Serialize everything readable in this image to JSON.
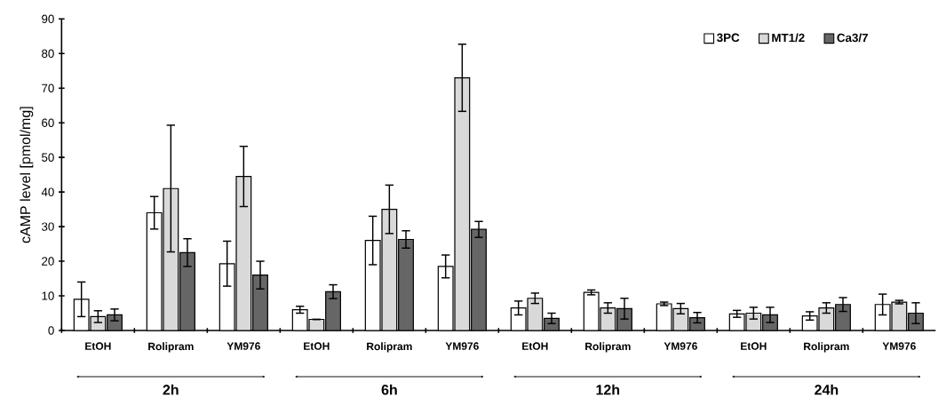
{
  "chart_data": {
    "type": "bar",
    "ylabel": "cAMP level [pmol/mg]",
    "categories": [
      "EtOH",
      "Rolipram",
      "YM976",
      "EtOH",
      "Rolipram",
      "YM976",
      "EtOH",
      "Rolipram",
      "YM976",
      "EtOH",
      "Rolipram",
      "YM976"
    ],
    "series": [
      {
        "name": "3PC",
        "color": "#ffffff",
        "values": [
          9,
          34,
          19.3,
          6,
          26,
          18.5,
          6.5,
          11,
          7.7,
          4.8,
          4.2,
          7.5
        ],
        "errors": [
          5,
          4.7,
          6.5,
          1,
          7,
          3.3,
          2,
          0.7,
          0.5,
          1,
          1.2,
          3
        ]
      },
      {
        "name": "MT1/2",
        "color": "#d9d9d9",
        "values": [
          4,
          41,
          44.5,
          3.2,
          35,
          73,
          9.3,
          6.5,
          6.3,
          5,
          6.5,
          8.2
        ],
        "errors": [
          1.7,
          18.3,
          8.7,
          0,
          7,
          9.7,
          1.5,
          1.5,
          1.5,
          1.7,
          1.5,
          0.5
        ]
      },
      {
        "name": "Ca3/7",
        "color": "#666666",
        "values": [
          4.5,
          22.5,
          16,
          11.2,
          26.3,
          29.2,
          3.5,
          6.3,
          3.7,
          4.5,
          7.5,
          5
        ],
        "errors": [
          1.7,
          4,
          4,
          2,
          2.5,
          2.3,
          1.5,
          3,
          1.5,
          2.2,
          2,
          3
        ]
      }
    ],
    "annotations": [
      "2h",
      "6h",
      "12h",
      "24h"
    ],
    "ylim": [
      0,
      90
    ],
    "yticks": [
      0,
      10,
      20,
      30,
      40,
      50,
      60,
      70,
      80,
      90
    ],
    "legend": "top right",
    "grid": false
  }
}
